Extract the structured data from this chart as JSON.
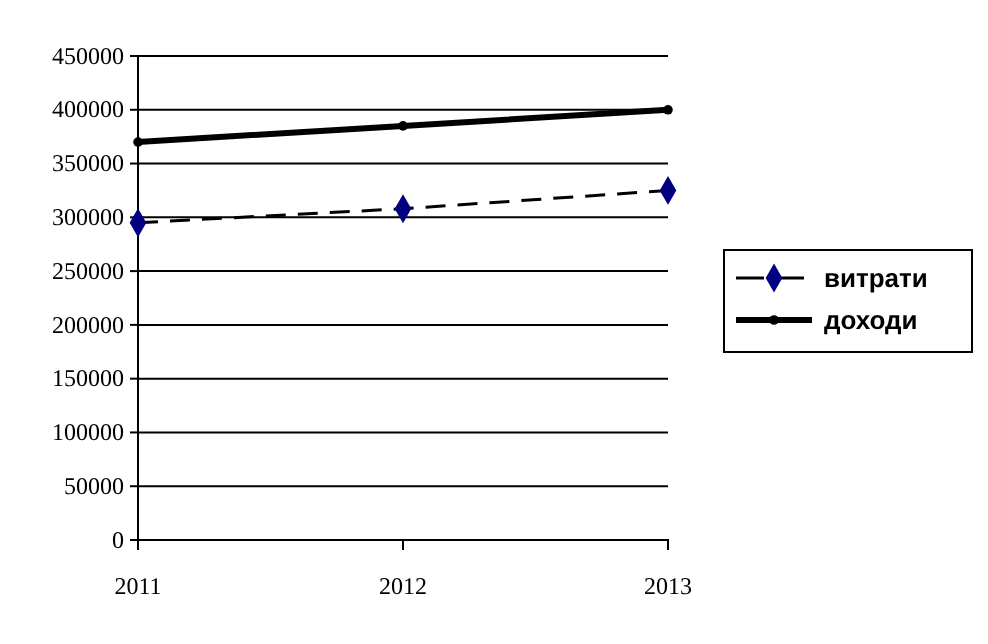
{
  "chart_data": {
    "type": "line",
    "x": [
      2011,
      2012,
      2013
    ],
    "xlim": [
      2011,
      2013
    ],
    "xticks": [
      2011,
      2012,
      2013
    ],
    "ylim": [
      0,
      450000
    ],
    "yticks": [
      0,
      50000,
      100000,
      150000,
      200000,
      250000,
      300000,
      350000,
      400000,
      450000
    ],
    "grid": "y",
    "legend": "right",
    "series": [
      {
        "name": "витрати",
        "color": "#000080",
        "marker": "diamond",
        "line_style": "dashed",
        "values": [
          295000,
          308000,
          325000
        ]
      },
      {
        "name": "доходи",
        "color": "#000000",
        "marker": "circle",
        "line_style": "solid",
        "values": [
          370000,
          385000,
          400000
        ]
      }
    ]
  }
}
